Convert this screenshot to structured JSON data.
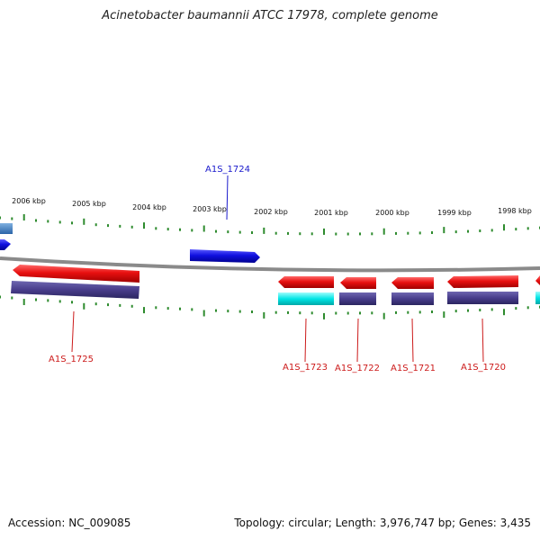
{
  "title": "Acinetobacter baumannii ATCC 17978, complete genome",
  "accession": "Accession: NC_009085",
  "stats": "Topology: circular; Length: 3,976,747 bp; Genes: 3,435",
  "colors": {
    "backbone": "#8a8a8a",
    "tick": "#2e8b2e",
    "forward_gene": "#1010e0",
    "reverse_gene": "#e01010",
    "reverse_cds": "#4a3f8a",
    "rna": "#00e5e5",
    "partial_left": "#3a7fc8",
    "forward_label": "#1a1acc",
    "reverse_label": "#cc1a1a"
  },
  "scale_labels": [
    "2006 kbp",
    "2005 kbp",
    "2004 kbp",
    "2003 kbp",
    "2002 kbp",
    "2001 kbp",
    "2000 kbp",
    "1999 kbp",
    "1998 kbp"
  ],
  "gene_labels": [
    {
      "text": "A1S_1724",
      "strand": "forward"
    },
    {
      "text": "A1S_1725",
      "strand": "reverse"
    },
    {
      "text": "A1S_1723",
      "strand": "reverse"
    },
    {
      "text": "A1S_1722",
      "strand": "reverse"
    },
    {
      "text": "A1S_1721",
      "strand": "reverse"
    },
    {
      "text": "A1S_1720",
      "strand": "reverse"
    }
  ]
}
